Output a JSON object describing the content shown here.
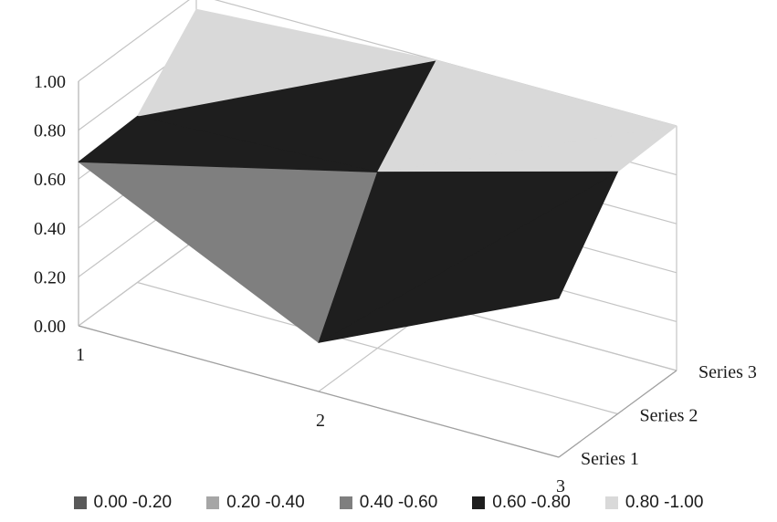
{
  "chart_data": {
    "type": "surface",
    "title": "",
    "x_categories": [
      "1",
      "2",
      "3"
    ],
    "series_names": [
      "Series 1",
      "Series 2",
      "Series 3"
    ],
    "z_axis": {
      "ticks": [
        "0.00",
        "0.20",
        "0.40",
        "0.60",
        "0.80",
        "1.00"
      ],
      "range": [
        0,
        1
      ],
      "gridlines": true
    },
    "values": {
      "Series 1": [
        0.67,
        0.2,
        0.65
      ],
      "Series 2": [
        0.68,
        0.72,
        0.99
      ],
      "Series 3": [
        0.94,
        1.0,
        1.0
      ]
    },
    "legend": {
      "position": "bottom",
      "items": [
        {
          "label": "0.00 -0.20",
          "color": "#595959"
        },
        {
          "label": "0.20 -0.40",
          "color": "#a6a6a6"
        },
        {
          "label": "0.40 -0.60",
          "color": "#7f7f7f"
        },
        {
          "label": "0.60 -0.80",
          "color": "#1e1e1e"
        },
        {
          "label": "0.80 -1.00",
          "color": "#d9d9d9"
        }
      ]
    }
  }
}
